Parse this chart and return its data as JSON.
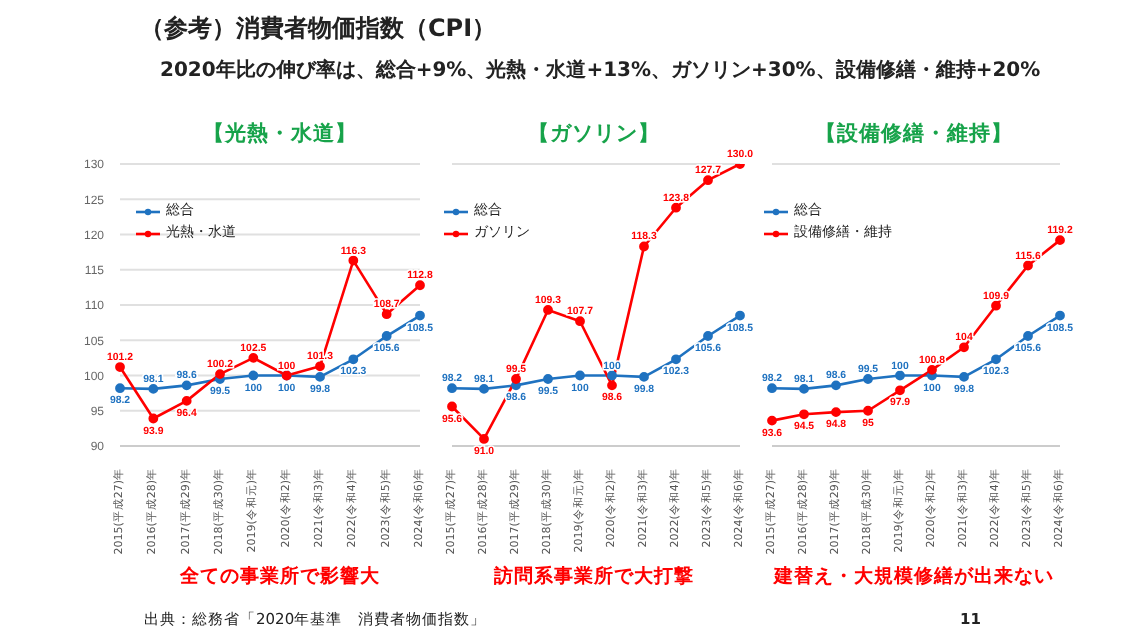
{
  "chart_data": [
    {
      "type": "other",
      "title": "（参考）消費者物価指数（CPI）",
      "subtitle": "2020年比の伸び率は、総合+9%、光熱・水道+13%、ガソリン+30%、設備修繕・維持+20%",
      "annotations": [
        "出典：総務省「2020年基準　消費者物価指数」",
        "11"
      ]
    },
    {
      "type": "line",
      "title": "【光熱・水道】",
      "categories": [
        "2015(平成27)年",
        "2016(平成28)年",
        "2017(平成29)年",
        "2018(平成30)年",
        "2019(令和元)年",
        "2020(令和2)年",
        "2021(令和3)年",
        "2022(令和4)年",
        "2023(令和5)年",
        "2024(令和6)年"
      ],
      "series": [
        {
          "name": "総合",
          "color": "#1f72c0",
          "values": [
            98.2,
            98.1,
            98.6,
            99.5,
            100,
            100,
            99.8,
            102.3,
            105.6,
            108.5
          ],
          "value_labels": [
            "98.2",
            "98.1",
            "98.6",
            "99.5",
            "100",
            "100",
            "99.8",
            "102.3",
            "105.6",
            "108.5"
          ]
        },
        {
          "name": "光熱・水道",
          "color": "#ff0000",
          "values": [
            101.2,
            93.9,
            96.4,
            100.2,
            102.5,
            100,
            101.3,
            116.3,
            108.7,
            112.8
          ],
          "value_labels": [
            "101.2",
            "93.9",
            "96.4",
            "100.2",
            "102.5",
            "100",
            "101.3",
            "116.3",
            "108.7",
            "112.8"
          ]
        }
      ],
      "ylim": [
        90,
        130
      ],
      "yticks": [
        90,
        95,
        100,
        105,
        110,
        115,
        120,
        125,
        130
      ],
      "grid": "y",
      "legend": "top left",
      "marker": "circle",
      "annotations": [
        "全ての事業所で影響大"
      ]
    },
    {
      "type": "line",
      "title": "【ガソリン】",
      "categories": [
        "2015(平成27)年",
        "2016(平成28)年",
        "2017(平成29)年",
        "2018(平成30)年",
        "2019(令和元)年",
        "2020(令和2)年",
        "2021(令和3)年",
        "2022(令和4)年",
        "2023(令和5)年",
        "2024(令和6)年"
      ],
      "series": [
        {
          "name": "総合",
          "color": "#1f72c0",
          "values": [
            98.2,
            98.1,
            98.6,
            99.5,
            100,
            100,
            99.8,
            102.3,
            105.6,
            108.5
          ],
          "value_labels": [
            "98.2",
            "98.1",
            "98.6",
            "99.5",
            "100",
            "100",
            "99.8",
            "102.3",
            "105.6",
            "108.5"
          ]
        },
        {
          "name": "ガソリン",
          "color": "#ff0000",
          "values": [
            95.6,
            91.0,
            99.5,
            109.3,
            107.7,
            98.6,
            118.3,
            123.8,
            127.7,
            130.0
          ],
          "value_labels": [
            "95.6",
            "91.0",
            "99.5",
            "109.3",
            "107.7",
            "98.6",
            "118.3",
            "123.8",
            "127.7",
            "130.0"
          ]
        }
      ],
      "ylim": [
        90,
        130
      ],
      "yticks": [
        90,
        95,
        100,
        105,
        110,
        115,
        120,
        125,
        130
      ],
      "tick_labels": "x",
      "grid": "y",
      "legend": "top left",
      "marker": "circle",
      "annotations": [
        "訪問系事業所で大打撃"
      ]
    },
    {
      "type": "line",
      "title": "【設備修繕・維持】",
      "categories": [
        "2015(平成27)年",
        "2016(平成28)年",
        "2017(平成29)年",
        "2018(平成30)年",
        "2019(令和元)年",
        "2020(令和2)年",
        "2021(令和3)年",
        "2022(令和4)年",
        "2023(令和5)年",
        "2024(令和6)年"
      ],
      "series": [
        {
          "name": "総合",
          "color": "#1f72c0",
          "values": [
            98.2,
            98.1,
            98.6,
            99.5,
            100,
            100,
            99.8,
            102.3,
            105.6,
            108.5
          ],
          "value_labels": [
            "98.2",
            "98.1",
            "98.6",
            "99.5",
            "100",
            "100",
            "99.8",
            "102.3",
            "105.6",
            "108.5"
          ]
        },
        {
          "name": "設備修繕・維持",
          "color": "#ff0000",
          "values": [
            93.6,
            94.5,
            94.8,
            95,
            97.9,
            100.8,
            104,
            109.9,
            115.6,
            119.2
          ],
          "value_labels": [
            "93.6",
            "94.5",
            "94.8",
            "95",
            "97.9",
            "100.8",
            "104",
            "109.9",
            "115.6",
            "119.2"
          ]
        }
      ],
      "ylim": [
        90,
        130
      ],
      "yticks": [
        90,
        95,
        100,
        105,
        110,
        115,
        120,
        125,
        130
      ],
      "tick_labels": "x",
      "grid": "y",
      "legend": "top left",
      "marker": "circle",
      "annotations": [
        "建替え・大規模修繕が出来ない"
      ]
    }
  ]
}
